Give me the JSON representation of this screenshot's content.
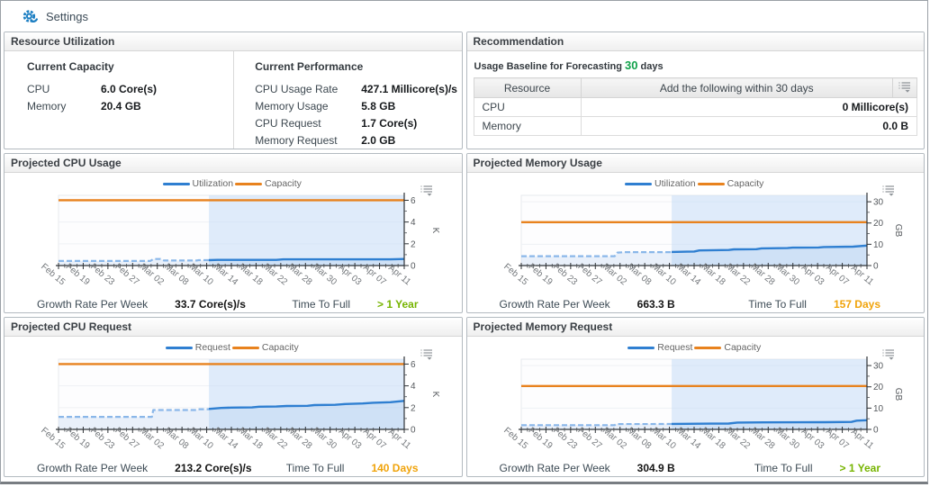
{
  "header": {
    "title": "Settings"
  },
  "icons": {
    "settings": "gear-icon",
    "chart_options": "list-customizer-icon",
    "table_options": "list-customizer-icon"
  },
  "colors": {
    "accent_blue": "#1b7ec2",
    "line_blue": "#2f7fd1",
    "history_blue": "#8ab7e9",
    "capacity_orange": "#e8821e",
    "good_green": "#76b400",
    "warn_amber": "#f0a30a",
    "baseline_green": "#12a24b"
  },
  "resource_utilization": {
    "title": "Resource Utilization",
    "capacity_section": {
      "title": "Current Capacity",
      "rows": [
        {
          "label": "CPU",
          "value": "6.0 Core(s)"
        },
        {
          "label": "Memory",
          "value": "20.4 GB"
        }
      ]
    },
    "performance_section": {
      "title": "Current Performance",
      "rows": [
        {
          "label": "CPU Usage Rate",
          "value": "427.1 Millicore(s)/s"
        },
        {
          "label": "Memory Usage",
          "value": "5.8 GB"
        },
        {
          "label": "CPU Request",
          "value": "1.7 Core(s)"
        },
        {
          "label": "Memory Request",
          "value": "2.0 GB"
        }
      ]
    }
  },
  "recommendation": {
    "title": "Recommendation",
    "baseline_prefix": "Usage Baseline for Forecasting",
    "baseline_value": "30",
    "baseline_suffix": "days",
    "table": {
      "col1": "Resource",
      "col2": "Add the following within 30 days",
      "rows": [
        {
          "resource": "CPU",
          "value": "0 Millicore(s)"
        },
        {
          "resource": "Memory",
          "value": "0.0 B"
        }
      ]
    }
  },
  "chart_data": [
    {
      "type": "line",
      "title": "Projected CPU Usage",
      "unit": "K",
      "ylim": [
        0,
        6.45
      ],
      "y_ticks": [
        0,
        2,
        4,
        6
      ],
      "capacity_value": 6.0,
      "forecast_start_frac": 0.435,
      "legend_position": "top-center",
      "x_labels": [
        "Feb 15",
        "Feb 19",
        "Feb 23",
        "Feb 27",
        "Mar 02",
        "Mar 08",
        "Mar 10",
        "Mar 14",
        "Mar 18",
        "Mar 22",
        "Mar 28",
        "Mar 30",
        "Apr 03",
        "Apr 07",
        "Apr 11"
      ],
      "series": [
        {
          "name": "Utilization",
          "color": "#2f7fd1",
          "history_color": "#8ab7e9",
          "history": [
            [
              0,
              0.42
            ],
            [
              0.265,
              0.42
            ],
            [
              0.275,
              0.6
            ],
            [
              0.295,
              0.6
            ],
            [
              0.305,
              0.46
            ],
            [
              0.4,
              0.46
            ],
            [
              0.405,
              0.5
            ],
            [
              0.435,
              0.5
            ]
          ],
          "forecast": [
            [
              0.435,
              0.5
            ],
            [
              0.46,
              0.52
            ],
            [
              0.63,
              0.52
            ],
            [
              0.65,
              0.57
            ],
            [
              0.96,
              0.57
            ],
            [
              1,
              0.6
            ]
          ]
        },
        {
          "name": "Capacity",
          "color": "#e8821e",
          "value": 6.0
        }
      ],
      "footer": {
        "growth_label": "Growth Rate Per Week",
        "growth_value": "33.7 Core(s)/s",
        "ttf_label": "Time To Full",
        "ttf_value": "> 1 Year",
        "ttf_color": "#76b400"
      }
    },
    {
      "type": "line",
      "title": "Projected Memory Usage",
      "unit": "GB",
      "ylim": [
        0,
        33
      ],
      "y_ticks": [
        0,
        10,
        20,
        30
      ],
      "capacity_value": 20.4,
      "forecast_start_frac": 0.435,
      "legend_position": "top-center",
      "x_labels": [
        "Feb 15",
        "Feb 19",
        "Feb 23",
        "Feb 27",
        "Mar 02",
        "Mar 08",
        "Mar 10",
        "Mar 14",
        "Mar 18",
        "Mar 22",
        "Mar 28",
        "Mar 30",
        "Apr 03",
        "Apr 07",
        "Apr 11"
      ],
      "series": [
        {
          "name": "Utilization",
          "color": "#2f7fd1",
          "history_color": "#8ab7e9",
          "history": [
            [
              0,
              4.4
            ],
            [
              0.27,
              4.4
            ],
            [
              0.278,
              6.1
            ],
            [
              0.3,
              6.3
            ],
            [
              0.435,
              6.3
            ]
          ],
          "forecast": [
            [
              0.435,
              6.4
            ],
            [
              0.5,
              6.6
            ],
            [
              0.515,
              7.1
            ],
            [
              0.6,
              7.3
            ],
            [
              0.615,
              7.6
            ],
            [
              0.68,
              7.7
            ],
            [
              0.695,
              8.1
            ],
            [
              0.77,
              8.2
            ],
            [
              0.785,
              8.4
            ],
            [
              0.86,
              8.5
            ],
            [
              0.875,
              8.7
            ],
            [
              0.96,
              8.9
            ],
            [
              1,
              9.4
            ]
          ]
        },
        {
          "name": "Capacity",
          "color": "#e8821e",
          "value": 20.4
        }
      ],
      "footer": {
        "growth_label": "Growth Rate Per Week",
        "growth_value": "663.3 B",
        "ttf_label": "Time To Full",
        "ttf_value": "157 Days",
        "ttf_color": "#f0a30a"
      }
    },
    {
      "type": "line",
      "title": "Projected CPU Request",
      "unit": "K",
      "ylim": [
        0,
        6.45
      ],
      "y_ticks": [
        0,
        2,
        4,
        6
      ],
      "capacity_value": 6.0,
      "forecast_start_frac": 0.435,
      "legend_position": "top-center",
      "x_labels": [
        "Feb 15",
        "Feb 19",
        "Feb 23",
        "Feb 27",
        "Mar 02",
        "Mar 08",
        "Mar 10",
        "Mar 14",
        "Mar 18",
        "Mar 22",
        "Mar 28",
        "Mar 30",
        "Apr 03",
        "Apr 07",
        "Apr 11"
      ],
      "series": [
        {
          "name": "Request",
          "color": "#2f7fd1",
          "history_color": "#8ab7e9",
          "history": [
            [
              0,
              1.15
            ],
            [
              0.27,
              1.15
            ],
            [
              0.274,
              1.78
            ],
            [
              0.4,
              1.78
            ],
            [
              0.405,
              1.85
            ],
            [
              0.435,
              1.85
            ]
          ],
          "forecast": [
            [
              0.435,
              1.88
            ],
            [
              0.47,
              1.97
            ],
            [
              0.5,
              2.0
            ],
            [
              0.56,
              2.02
            ],
            [
              0.58,
              2.08
            ],
            [
              0.63,
              2.1
            ],
            [
              0.66,
              2.15
            ],
            [
              0.72,
              2.17
            ],
            [
              0.74,
              2.23
            ],
            [
              0.8,
              2.26
            ],
            [
              0.83,
              2.33
            ],
            [
              0.88,
              2.38
            ],
            [
              0.91,
              2.45
            ],
            [
              0.96,
              2.5
            ],
            [
              1,
              2.62
            ]
          ]
        },
        {
          "name": "Capacity",
          "color": "#e8821e",
          "value": 6.0
        }
      ],
      "footer": {
        "growth_label": "Growth Rate Per Week",
        "growth_value": "213.2 Core(s)/s",
        "ttf_label": "Time To Full",
        "ttf_value": "140 Days",
        "ttf_color": "#f0a30a"
      }
    },
    {
      "type": "line",
      "title": "Projected Memory Request",
      "unit": "GB",
      "ylim": [
        0,
        33
      ],
      "y_ticks": [
        0,
        10,
        20,
        30
      ],
      "capacity_value": 20.4,
      "forecast_start_frac": 0.435,
      "legend_position": "top-center",
      "x_labels": [
        "Feb 15",
        "Feb 19",
        "Feb 23",
        "Feb 27",
        "Mar 02",
        "Mar 08",
        "Mar 10",
        "Mar 14",
        "Mar 18",
        "Mar 22",
        "Mar 28",
        "Mar 30",
        "Apr 03",
        "Apr 07",
        "Apr 11"
      ],
      "series": [
        {
          "name": "Request",
          "color": "#2f7fd1",
          "history_color": "#8ab7e9",
          "history": [
            [
              0,
              2.0
            ],
            [
              0.27,
              2.0
            ],
            [
              0.274,
              2.5
            ],
            [
              0.435,
              2.55
            ]
          ],
          "forecast": [
            [
              0.435,
              2.6
            ],
            [
              0.55,
              2.7
            ],
            [
              0.6,
              2.75
            ],
            [
              0.625,
              3.2
            ],
            [
              0.7,
              3.3
            ],
            [
              0.88,
              3.4
            ],
            [
              0.955,
              3.5
            ],
            [
              0.97,
              4.1
            ],
            [
              1,
              4.3
            ]
          ]
        },
        {
          "name": "Capacity",
          "color": "#e8821e",
          "value": 20.4
        }
      ],
      "footer": {
        "growth_label": "Growth Rate Per Week",
        "growth_value": "304.9 B",
        "ttf_label": "Time To Full",
        "ttf_value": "> 1 Year",
        "ttf_color": "#76b400"
      }
    }
  ]
}
